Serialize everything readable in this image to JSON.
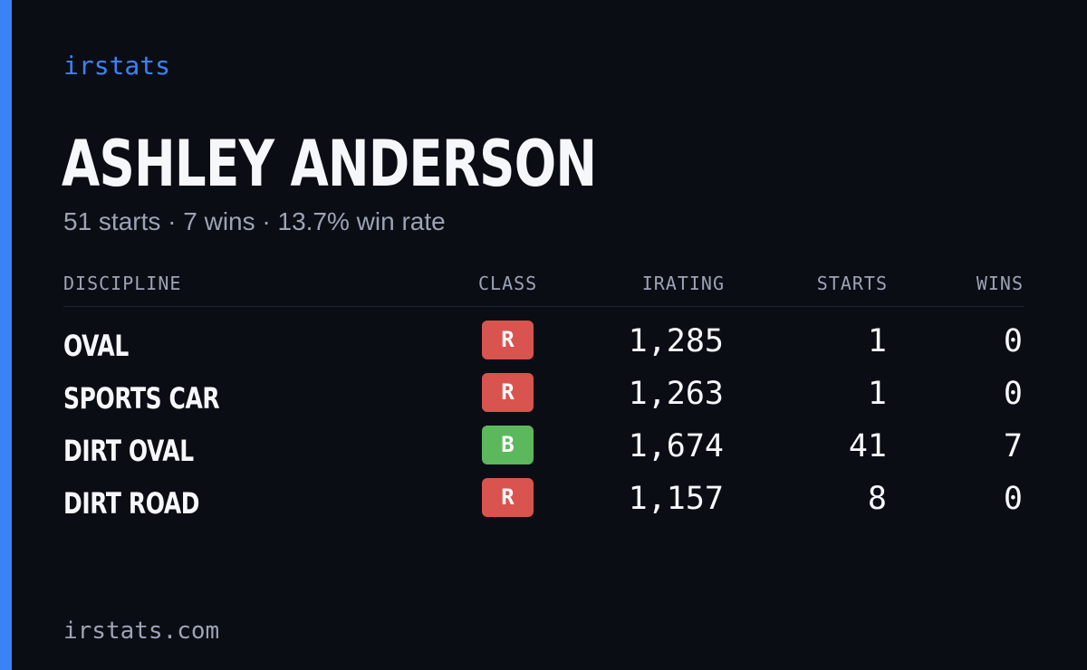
{
  "brand": "irstats",
  "driver": {
    "name": "ASHLEY ANDERSON",
    "summary": "51 starts · 7 wins · 13.7% win rate"
  },
  "table": {
    "headers": {
      "discipline": "DISCIPLINE",
      "class": "CLASS",
      "irating": "IRATING",
      "starts": "STARTS",
      "wins": "WINS"
    },
    "rows": [
      {
        "discipline": "OVAL",
        "class": "R",
        "irating": "1,285",
        "starts": "1",
        "wins": "0"
      },
      {
        "discipline": "SPORTS CAR",
        "class": "R",
        "irating": "1,263",
        "starts": "1",
        "wins": "0"
      },
      {
        "discipline": "DIRT OVAL",
        "class": "B",
        "irating": "1,674",
        "starts": "41",
        "wins": "7"
      },
      {
        "discipline": "DIRT ROAD",
        "class": "R",
        "irating": "1,157",
        "starts": "8",
        "wins": "0"
      }
    ]
  },
  "class_colors": {
    "R": "#d9534f",
    "B": "#5cb85c"
  },
  "colors": {
    "accent": "#3b82f6",
    "background": "#0b0d14"
  },
  "footer": "irstats.com"
}
